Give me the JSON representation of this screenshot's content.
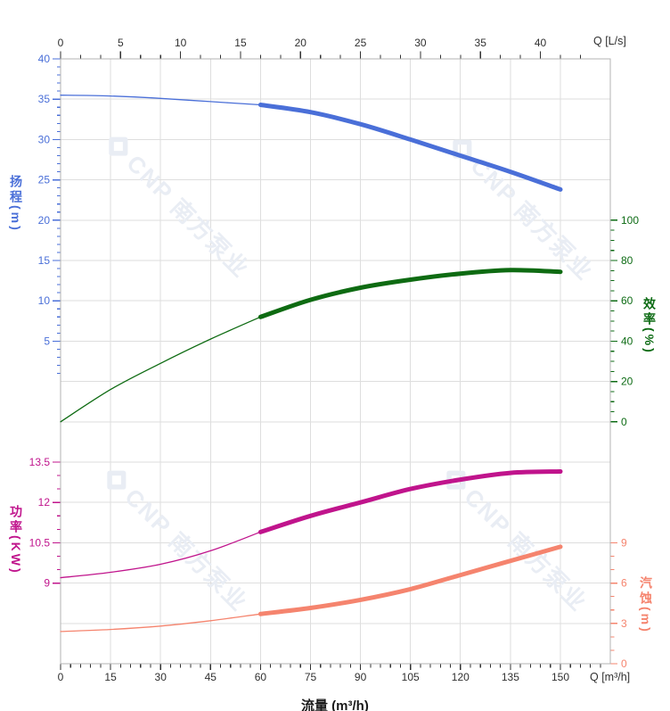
{
  "watermark": {
    "text": "CNP 南方泵业",
    "color": "#e9edf4"
  },
  "chart_data": {
    "type": "line",
    "description": "Pump performance curves: head, efficiency, power and NPSH versus flow",
    "grid": true,
    "axes": {
      "flow_top": {
        "unit_label": "Q [L/s]",
        "ticks": [
          0,
          5,
          10,
          15,
          20,
          25,
          30,
          35,
          40
        ],
        "color": "#303030"
      },
      "flow_bottom": {
        "axis_title": "流量 (m³/h)",
        "unit_label": "Q [m³/h]",
        "ticks": [
          0,
          15,
          30,
          45,
          60,
          75,
          90,
          105,
          120,
          135,
          150
        ],
        "color": "#303030"
      },
      "head": {
        "title": "扬程(m)",
        "ticks": [
          5,
          10,
          15,
          20,
          25,
          30,
          35,
          40
        ],
        "range": [
          0,
          40
        ],
        "color": "#4a6fd8"
      },
      "efficiency": {
        "title": "效率(%)",
        "ticks": [
          0,
          20,
          40,
          60,
          80,
          100
        ],
        "range": [
          0,
          100
        ],
        "color": "#0d6b14"
      },
      "power": {
        "title": "功率(KW)",
        "ticks": [
          9,
          10.5,
          12,
          13.5
        ],
        "range": [
          9,
          13.5
        ],
        "color": "#c0148c"
      },
      "npsh": {
        "title": "汽蚀(m)",
        "ticks": [
          0,
          3,
          6,
          9
        ],
        "range": [
          0,
          9
        ],
        "color": "#f5846e"
      }
    },
    "x_m3h": [
      0,
      15,
      30,
      45,
      60,
      75,
      90,
      105,
      120,
      135,
      150
    ],
    "series": [
      {
        "name": "head",
        "axis": "head",
        "color": "#4a6fd8",
        "bold_from": 60,
        "values": [
          35.5,
          35.4,
          35.1,
          34.7,
          34.3,
          33.4,
          31.9,
          30.0,
          28.0,
          26.0,
          23.8
        ]
      },
      {
        "name": "efficiency",
        "axis": "efficiency",
        "color": "#0e6b12",
        "bold_from": 60,
        "values": [
          0,
          16,
          29,
          41,
          52,
          60.5,
          66.5,
          70.5,
          73.5,
          75.2,
          74.4
        ]
      },
      {
        "name": "power",
        "axis": "power",
        "color": "#c0148c",
        "bold_from": 60,
        "values": [
          9.2,
          9.4,
          9.7,
          10.2,
          10.9,
          11.5,
          12.0,
          12.5,
          12.85,
          13.1,
          13.15
        ]
      },
      {
        "name": "npsh",
        "axis": "npsh",
        "color": "#f5846e",
        "bold_from": 60,
        "values": [
          2.4,
          2.55,
          2.8,
          3.2,
          3.7,
          4.15,
          4.75,
          5.55,
          6.6,
          7.65,
          8.7
        ]
      }
    ],
    "duty_range_m3h": [
      60,
      150
    ],
    "grid_color": "#dedede",
    "border_color": "#b3b3b3"
  }
}
